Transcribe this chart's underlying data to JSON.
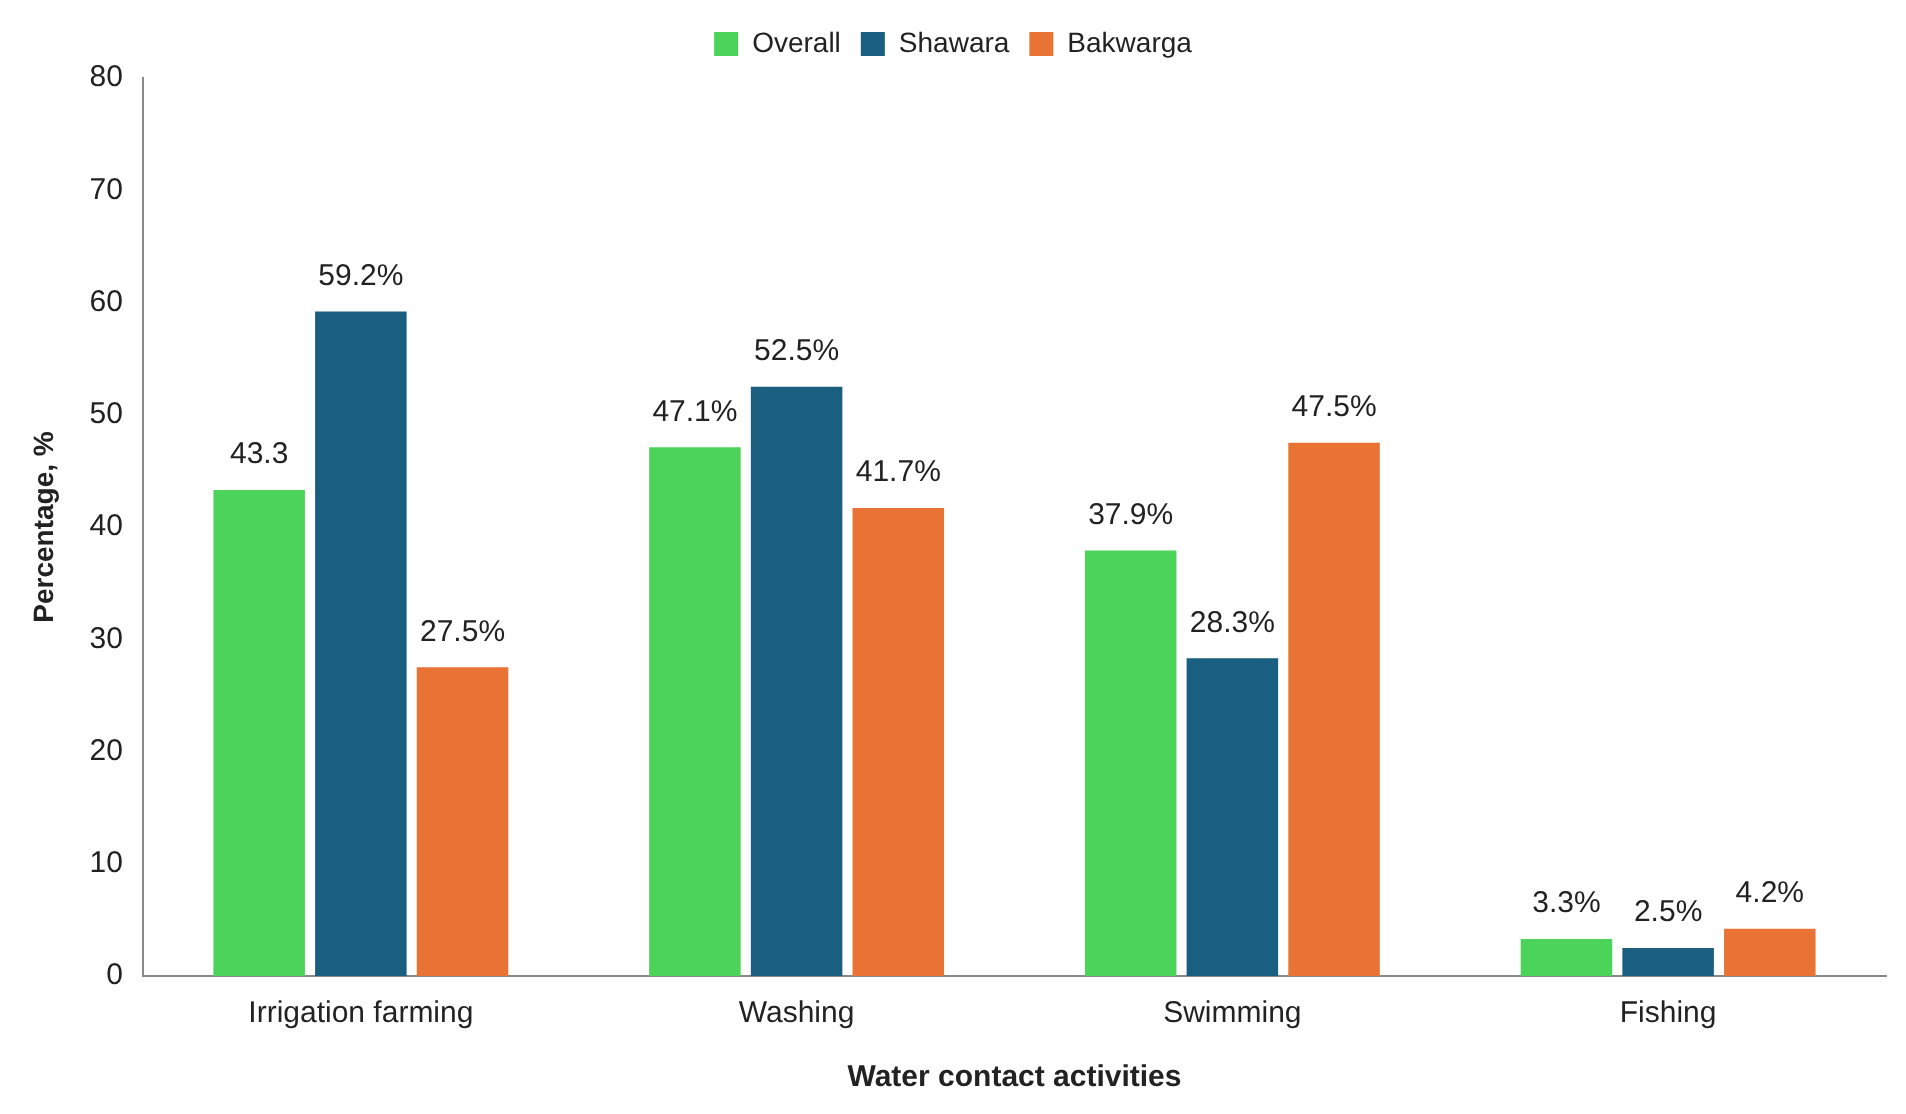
{
  "chart_data": {
    "type": "bar",
    "xlabel": "Water contact activities",
    "ylabel": "Percentage, %",
    "categories": [
      "Irrigation farming",
      "Washing",
      "Swimming",
      "Fishing"
    ],
    "series": [
      {
        "name": "Overall",
        "color": "#4cd45a",
        "values": [
          43.3,
          47.1,
          37.9,
          3.3
        ],
        "value_labels": [
          "43.3",
          "47.1%",
          "37.9%",
          "3.3%"
        ]
      },
      {
        "name": "Shawara",
        "color": "#1a5e80",
        "values": [
          59.2,
          52.5,
          28.3,
          2.5
        ],
        "value_labels": [
          "59.2%",
          "52.5%",
          "28.3%",
          "2.5%"
        ]
      },
      {
        "name": "Bakwarga",
        "color": "#e87335",
        "values": [
          27.5,
          41.7,
          47.5,
          4.2
        ],
        "value_labels": [
          "27.5%",
          "41.7%",
          "47.5%",
          "4.2%"
        ]
      }
    ],
    "ylim": [
      0,
      80
    ],
    "yticks": [
      0,
      10,
      20,
      30,
      40,
      50,
      60,
      70,
      80
    ],
    "grid": false,
    "legend": "top"
  }
}
